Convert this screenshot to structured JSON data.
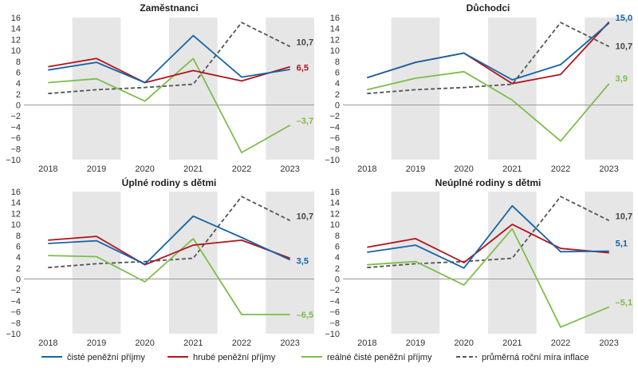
{
  "chart_data": [
    {
      "type": "line",
      "title": "Zaměstnanci",
      "categories": [
        "2018",
        "2019",
        "2020",
        "2021",
        "2022",
        "2023"
      ],
      "ylim": [
        -10,
        16
      ],
      "yticks": [
        "-10",
        "-8",
        "-6",
        "-4",
        "-2",
        "0",
        "2",
        "4",
        "6",
        "8",
        "10",
        "12",
        "14",
        "16"
      ],
      "series": [
        {
          "name": "čisté peněžní příjmy",
          "values": [
            6.4,
            7.8,
            4.1,
            12.7,
            5.1,
            6.5
          ]
        },
        {
          "name": "hrubé peněžní příjmy",
          "values": [
            7.0,
            8.5,
            4.1,
            6.3,
            4.4,
            7.0
          ]
        },
        {
          "name": "reálné čisté peněžní příjmy",
          "values": [
            4.1,
            4.8,
            0.7,
            8.5,
            -8.7,
            -3.7
          ]
        },
        {
          "name": "průměrná roční míra inflace",
          "values": [
            2.1,
            2.8,
            3.2,
            3.8,
            15.1,
            10.7
          ]
        }
      ],
      "labels": [
        "10,7",
        "6,5",
        "–3,7"
      ]
    },
    {
      "type": "line",
      "title": "Důchodci",
      "categories": [
        "2018",
        "2019",
        "2020",
        "2021",
        "2022",
        "2023"
      ],
      "ylim": [
        -10,
        16
      ],
      "yticks": [
        "-10",
        "-8",
        "-6",
        "-4",
        "-2",
        "0",
        "2",
        "4",
        "6",
        "8",
        "10",
        "12",
        "14",
        "16"
      ],
      "series": [
        {
          "name": "čisté peněžní příjmy",
          "values": [
            5.0,
            7.8,
            9.5,
            4.6,
            7.4,
            15.0
          ]
        },
        {
          "name": "hrubé peněžní příjmy",
          "values": [
            5.0,
            7.8,
            9.5,
            3.9,
            5.6,
            15.2
          ]
        },
        {
          "name": "reálné čisté peněžní příjmy",
          "values": [
            2.8,
            4.9,
            6.1,
            0.9,
            -6.6,
            3.9
          ]
        },
        {
          "name": "průměrná roční míra inflace",
          "values": [
            2.1,
            2.8,
            3.2,
            3.8,
            15.1,
            10.7
          ]
        }
      ],
      "labels": [
        "15,0",
        "10,7",
        "3,9"
      ]
    },
    {
      "type": "line",
      "title": "Úplné rodiny s dětmi",
      "categories": [
        "2018",
        "2019",
        "2020",
        "2021",
        "2022",
        "2023"
      ],
      "ylim": [
        -10,
        16
      ],
      "yticks": [
        "-10",
        "-8",
        "-6",
        "-4",
        "-2",
        "0",
        "2",
        "4",
        "6",
        "8",
        "10",
        "12",
        "14",
        "16"
      ],
      "series": [
        {
          "name": "čisté peněžní příjmy",
          "values": [
            6.5,
            7.0,
            2.7,
            11.5,
            7.6,
            3.5
          ]
        },
        {
          "name": "hrubé peněžní příjmy",
          "values": [
            7.1,
            7.8,
            2.6,
            6.2,
            7.1,
            3.8
          ]
        },
        {
          "name": "reálné čisté peněžní příjmy",
          "values": [
            4.3,
            4.1,
            -0.5,
            7.4,
            -6.5,
            -6.5
          ]
        },
        {
          "name": "průměrná roční míra inflace",
          "values": [
            2.1,
            2.8,
            3.2,
            3.8,
            15.1,
            10.7
          ]
        }
      ],
      "labels": [
        "10,7",
        "3,5",
        "–6,5"
      ]
    },
    {
      "type": "line",
      "title": "Neúplné rodiny s dětmi",
      "categories": [
        "2018",
        "2019",
        "2020",
        "2021",
        "2022",
        "2023"
      ],
      "ylim": [
        -10,
        16
      ],
      "yticks": [
        "-10",
        "-8",
        "-6",
        "-4",
        "-2",
        "0",
        "2",
        "4",
        "6",
        "8",
        "10",
        "12",
        "14",
        "16"
      ],
      "series": [
        {
          "name": "čisté peněžní příjmy",
          "values": [
            4.9,
            6.2,
            2.0,
            13.4,
            5.0,
            5.1
          ]
        },
        {
          "name": "hrubé peněžní příjmy",
          "values": [
            5.8,
            7.4,
            3.0,
            10.0,
            5.6,
            4.8
          ]
        },
        {
          "name": "reálné čisté peněžní příjmy",
          "values": [
            2.6,
            3.2,
            -1.1,
            9.2,
            -8.8,
            -5.1
          ]
        },
        {
          "name": "průměrná roční míra inflace",
          "values": [
            2.1,
            2.8,
            3.2,
            3.8,
            15.1,
            10.7
          ]
        }
      ],
      "labels": [
        "10,7",
        "5,1",
        "–5,1"
      ]
    }
  ],
  "legend": [
    {
      "label": "čisté peněžní příjmy",
      "color": "#1464a8",
      "dashed": false
    },
    {
      "label": "hrubé peněžní příjmy",
      "color": "#b5121b",
      "dashed": false
    },
    {
      "label": "reálné čisté peněžní příjmy",
      "color": "#7dbd4c",
      "dashed": false
    },
    {
      "label": "průměrná roční míra inflace",
      "color": "#555555",
      "dashed": true
    }
  ],
  "colors": {
    "net": "#1464a8",
    "gross": "#b5121b",
    "real": "#7dbd4c",
    "inflation": "#555555",
    "shade": "#e6e6e6",
    "zero_line": "#9a9a9a"
  }
}
